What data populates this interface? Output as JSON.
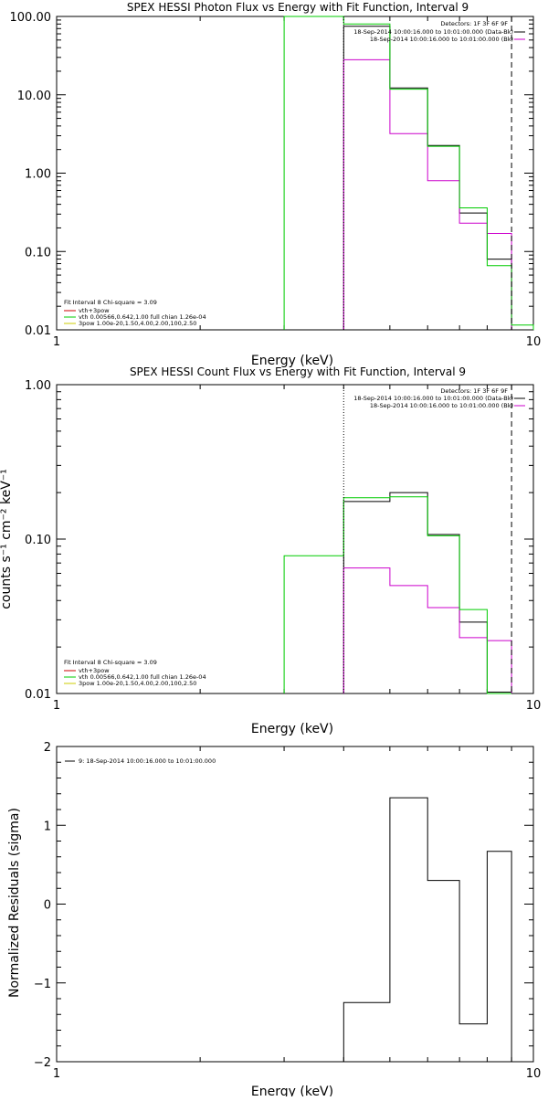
{
  "charts": [
    {
      "id": "p1",
      "title": "SPEX HESSI Photon Flux vs Energy with Fit Function, Interval 9",
      "xlabel": "Energy (keV)",
      "ylabel": "",
      "xticks": [
        {
          "v": 1,
          "label": "1"
        },
        {
          "v": 10,
          "label": "10"
        }
      ],
      "yticks": [
        {
          "v": 0.01,
          "label": "0.01"
        },
        {
          "v": 0.1,
          "label": "0.10"
        },
        {
          "v": 1,
          "label": "1.00"
        },
        {
          "v": 10,
          "label": "10.00"
        },
        {
          "v": 100,
          "label": "100.00"
        }
      ],
      "legend_tr": [
        "Detectors: 1F 3F 6F 9F",
        "18-Sep-2014 10:00:16.000 to 10:01:00.000 (Data-Bk)",
        "18-Sep-2014 10:00:16.000 to 10:01:00.000 (Bk)"
      ],
      "legend_bl": [
        "Fit Interval 8   Chi-square = 3.09",
        "vth+3pow",
        "vth 0.00566,0.642,1.00  full chian 1.26e-04",
        "3pow 1.00e-20,1.50,4.00,2.00,100,2.50"
      ]
    },
    {
      "id": "p2",
      "title": "SPEX HESSI Count Flux vs Energy with Fit Function, Interval 9",
      "xlabel": "Energy (keV)",
      "ylabel": "counts s⁻¹ cm⁻² keV⁻¹",
      "xticks": [
        {
          "v": 1,
          "label": "1"
        },
        {
          "v": 10,
          "label": "10"
        }
      ],
      "yticks": [
        {
          "v": 0.01,
          "label": "0.01"
        },
        {
          "v": 0.1,
          "label": "0.10"
        },
        {
          "v": 1,
          "label": "1.00"
        }
      ],
      "legend_tr": [
        "Detectors: 1F 3F 6F 9F",
        "18-Sep-2014 10:00:16.000 to 10:01:00.000 (Data-Bk)",
        "18-Sep-2014 10:00:16.000 to 10:01:00.000 (Bk)"
      ],
      "legend_bl": [
        "Fit Interval 8   Chi-square = 3.09",
        "vth+3pow",
        "vth 0.00566,0.642,1.00  full chian 1.26e-04",
        "3pow 1.00e-20,1.50,4.00,2.00,100,2.50"
      ]
    },
    {
      "id": "p3",
      "title": "",
      "xlabel": "Energy (keV)",
      "ylabel": "Normalized Residuals (sigma)",
      "xticks": [
        {
          "v": 1,
          "label": "1"
        },
        {
          "v": 10,
          "label": "10"
        }
      ],
      "yticks": [
        {
          "v": -2,
          "label": "−2"
        },
        {
          "v": -1,
          "label": "−1"
        },
        {
          "v": 0,
          "label": "0"
        },
        {
          "v": 1,
          "label": "1"
        },
        {
          "v": 2,
          "label": "2"
        }
      ],
      "legend_tl": [
        "9: 18-Sep-2014 10:00:16.000 to 10:01:00.000"
      ]
    }
  ],
  "chart_data": [
    {
      "type": "line",
      "title": "SPEX HESSI Photon Flux vs Energy with Fit Function, Interval 9",
      "xlabel": "Energy (keV)",
      "xscale": "log",
      "yscale": "log",
      "xlim": [
        1,
        10
      ],
      "ylim": [
        0.01,
        100
      ],
      "bin_edges": [
        3,
        4,
        5,
        6,
        7,
        8,
        9,
        10
      ],
      "series": [
        {
          "name": "18-Sep-2014 10:00:16.000 to 10:01:00.000 (Data-Bk)",
          "color": "#000000",
          "values": [
            null,
            75,
            12.2,
            2.25,
            0.31,
            0.08,
            null
          ]
        },
        {
          "name": "18-Sep-2014 10:00:16.000 to 10:01:00.000 (Bk)",
          "color": "#cc00cc",
          "values": [
            null,
            28,
            3.2,
            0.8,
            0.23,
            0.17,
            null
          ]
        },
        {
          "name": "vth 0.00566,0.642,1.00  full chian 1.26e-04",
          "color": "#00cc00",
          "values": [
            1000,
            80,
            11.8,
            2.2,
            0.36,
            0.066,
            0.0115
          ]
        }
      ],
      "annotations": {
        "dotted_x": 4.0,
        "dashed_x": 9.0
      }
    },
    {
      "type": "line",
      "title": "SPEX HESSI Count Flux vs Energy with Fit Function, Interval 9",
      "xlabel": "Energy (keV)",
      "ylabel": "counts s⁻¹ cm⁻² keV⁻¹",
      "xscale": "log",
      "yscale": "log",
      "xlim": [
        1,
        10
      ],
      "ylim": [
        0.01,
        1
      ],
      "bin_edges": [
        3,
        4,
        5,
        6,
        7,
        8,
        9,
        10
      ],
      "series": [
        {
          "name": "18-Sep-2014 10:00:16.000 to 10:01:00.000 (Data-Bk)",
          "color": "#000000",
          "values": [
            null,
            0.175,
            0.2,
            0.107,
            0.029,
            0.0102,
            null
          ]
        },
        {
          "name": "18-Sep-2014 10:00:16.000 to 10:01:00.000 (Bk)",
          "color": "#cc00cc",
          "values": [
            null,
            0.065,
            0.05,
            0.036,
            0.023,
            0.022,
            null
          ]
        },
        {
          "name": "vth 0.00566,0.642,1.00  full chian 1.26e-04",
          "color": "#00cc00",
          "values": [
            0.078,
            0.185,
            0.188,
            0.105,
            0.035,
            0.01,
            null
          ]
        }
      ],
      "annotations": {
        "dotted_x": 4.0,
        "dashed_x": 9.0
      }
    },
    {
      "type": "line",
      "title": "",
      "xlabel": "Energy (keV)",
      "ylabel": "Normalized Residuals (sigma)",
      "xscale": "log",
      "yscale": "linear",
      "xlim": [
        1,
        10
      ],
      "ylim": [
        -2,
        2
      ],
      "bin_edges": [
        4,
        5,
        6,
        7,
        8,
        9
      ],
      "series": [
        {
          "name": "9: 18-Sep-2014 10:00:16.000 to 10:01:00.000",
          "color": "#000000",
          "values": [
            -1.25,
            1.35,
            0.3,
            -1.52,
            0.67
          ]
        }
      ]
    }
  ]
}
